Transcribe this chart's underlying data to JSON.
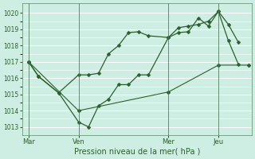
{
  "xlabel": "Pression niveau de la mer( hPa )",
  "bg_color": "#ceeee4",
  "grid_color": "#ffffff",
  "line_color": "#2d5e2d",
  "xtick_labels": [
    "Mar",
    "Ven",
    "Mer",
    "Jeu"
  ],
  "xtick_positions": [
    0,
    30,
    84,
    114
  ],
  "xlim": [
    -4,
    134
  ],
  "ylim": [
    1012.5,
    1020.6
  ],
  "yticks": [
    1013,
    1014,
    1015,
    1016,
    1017,
    1018,
    1019,
    1020
  ],
  "vlines": [
    0,
    30,
    84,
    114
  ],
  "series1_x": [
    0,
    6,
    18,
    30,
    36,
    42,
    48,
    54,
    60,
    66,
    72,
    84,
    90,
    96,
    102,
    108,
    114,
    120,
    126
  ],
  "series1_y": [
    1017.0,
    1016.1,
    1015.1,
    1013.3,
    1013.0,
    1014.3,
    1014.7,
    1015.6,
    1015.6,
    1016.2,
    1016.2,
    1018.5,
    1018.8,
    1018.85,
    1019.7,
    1019.2,
    1020.1,
    1018.3,
    1016.85
  ],
  "series2_x": [
    0,
    6,
    18,
    30,
    36,
    42,
    48,
    54,
    60,
    66,
    72,
    84,
    90,
    96,
    102,
    108,
    114,
    120,
    126
  ],
  "series2_y": [
    1017.0,
    1016.1,
    1015.1,
    1016.2,
    1016.2,
    1016.3,
    1017.5,
    1018.0,
    1018.8,
    1018.85,
    1018.6,
    1018.5,
    1019.1,
    1019.2,
    1019.3,
    1019.5,
    1020.1,
    1019.3,
    1018.2
  ],
  "series3_x": [
    0,
    30,
    84,
    114,
    132
  ],
  "series3_y": [
    1017.0,
    1014.0,
    1015.15,
    1016.8,
    1016.8
  ]
}
